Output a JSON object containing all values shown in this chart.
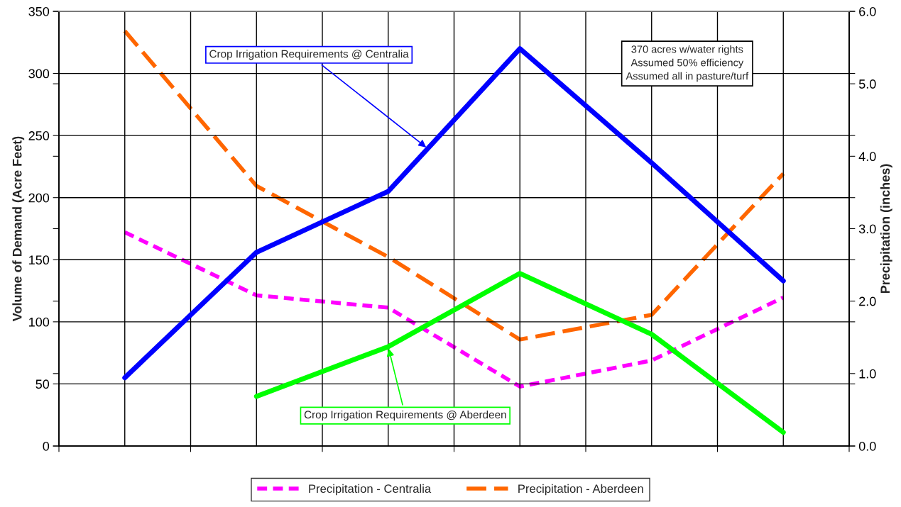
{
  "chart_data": {
    "type": "line",
    "ylabel": "Volume of Demand (Acre Feet)",
    "y2label": "Precipitation (inches)",
    "categories": [
      null,
      null,
      null,
      null,
      null,
      null
    ],
    "ylim": [
      0,
      350
    ],
    "yticks": [
      0,
      50,
      100,
      150,
      200,
      250,
      300,
      350
    ],
    "y2lim": [
      0,
      6
    ],
    "y2ticks": [
      {
        "value": 0,
        "label": "0.0"
      },
      {
        "value": 1,
        "label": "1.0"
      },
      {
        "value": 2,
        "label": "2.0"
      },
      {
        "value": 3,
        "label": "3.0"
      },
      {
        "value": 4,
        "label": "4.0"
      },
      {
        "value": 5,
        "label": "5.0"
      },
      {
        "value": 6,
        "label": "6.0"
      }
    ],
    "grid": true,
    "legend": "bottom",
    "marker": "none",
    "series": [
      {
        "name": "Crop Irrigation Requirements @ Centralia",
        "color": "#0000ff",
        "line_style": "solid",
        "values": [
          55,
          156,
          205,
          320,
          228,
          133
        ]
      },
      {
        "name": "Crop Irrigation Requirements @ Aberdeen",
        "color": "#00ff00",
        "line_style": "solid",
        "values": [
          null,
          40,
          80,
          139,
          90,
          11
        ]
      },
      {
        "name": "Precipitation - Centralia",
        "color": "#ff00ff",
        "line_style": "dashed",
        "axis": "y2",
        "values": [
          2.95,
          2.08,
          1.91,
          0.82,
          1.18,
          2.05
        ]
      },
      {
        "name": "Precipitation - Aberdeen",
        "color": "#ff6600",
        "line_style": "dashed",
        "axis": "y2",
        "values": [
          5.73,
          3.59,
          2.61,
          1.47,
          1.81,
          3.76
        ]
      }
    ],
    "annotations": [
      "370 acres w/water rights\nAssumed 50% efficiency\nAssumed all in pasture/turf"
    ]
  }
}
